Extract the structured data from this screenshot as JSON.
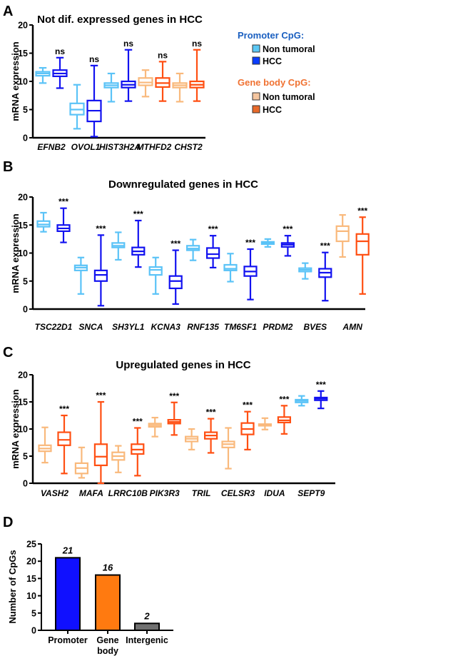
{
  "colors": {
    "promoter_non_tumoral": "#5bc3f7",
    "promoter_hcc": "#1212f0",
    "gene_body_non_tumoral": "#f9b97c",
    "gene_body_hcc": "#ff4f12",
    "promoter_heading": "#1a5fc0",
    "gene_body_heading": "#f07232",
    "bar_promoter": "#1010ff",
    "bar_gene_body": "#ff7a10",
    "bar_intergenic": "#707070"
  },
  "legend": {
    "promoter_heading": "Promoter CpG:",
    "promoter_items": [
      "Non tumoral",
      "HCC"
    ],
    "gene_body_heading": "Gene body CpG:",
    "gene_body_items": [
      "Non tumoral",
      "HCC"
    ]
  },
  "chart_data": [
    {
      "panel": "A",
      "type": "box",
      "title": "Not dif. expressed genes in HCC",
      "ylabel": "mRNA expression",
      "ylim": [
        0,
        20
      ],
      "yticks": [
        0,
        5,
        10,
        15,
        20
      ],
      "genes": [
        {
          "name": "EFNB2",
          "sig": "ns",
          "boxes": [
            {
              "group": "promoter_non_tumoral",
              "stats": [
                9.7,
                11.0,
                11.4,
                11.7,
                12.4
              ]
            },
            {
              "group": "promoter_hcc",
              "stats": [
                8.8,
                10.9,
                11.4,
                12.0,
                14.2
              ]
            }
          ]
        },
        {
          "name": "OVOL1",
          "sig": "ns",
          "boxes": [
            {
              "group": "promoter_non_tumoral",
              "stats": [
                1.6,
                4.1,
                5.0,
                6.1,
                9.4
              ]
            },
            {
              "group": "promoter_hcc",
              "stats": [
                0.2,
                2.9,
                4.8,
                6.6,
                12.8
              ]
            }
          ]
        },
        {
          "name": "HIST3H2A",
          "sig": "ns",
          "boxes": [
            {
              "group": "promoter_non_tumoral",
              "stats": [
                6.4,
                8.9,
                9.3,
                9.7,
                11.4
              ]
            },
            {
              "group": "promoter_hcc",
              "stats": [
                6.5,
                8.9,
                9.4,
                10.0,
                15.6
              ]
            }
          ]
        },
        {
          "name": "MTHFD2",
          "sig": "ns",
          "boxes": [
            {
              "group": "gene_body_non_tumoral",
              "stats": [
                7.3,
                9.3,
                9.8,
                10.6,
                12.0
              ]
            },
            {
              "group": "gene_body_hcc",
              "stats": [
                6.5,
                9.0,
                9.7,
                10.6,
                13.5
              ]
            }
          ]
        },
        {
          "name": "CHST2",
          "sig": "ns",
          "boxes": [
            {
              "group": "gene_body_non_tumoral",
              "stats": [
                6.4,
                8.9,
                9.3,
                9.7,
                11.4
              ]
            },
            {
              "group": "gene_body_hcc",
              "stats": [
                6.5,
                8.9,
                9.4,
                10.0,
                15.6
              ]
            }
          ]
        }
      ]
    },
    {
      "panel": "B",
      "type": "box",
      "title": "Downregulated genes in HCC",
      "ylabel": "mRNA expression",
      "ylim": [
        0,
        20
      ],
      "yticks": [
        0,
        5,
        10,
        15,
        20
      ],
      "genes": [
        {
          "name": "TSC22D1",
          "sig": "***",
          "boxes": [
            {
              "group": "promoter_non_tumoral",
              "stats": [
                13.8,
                14.7,
                15.1,
                15.7,
                17.2
              ]
            },
            {
              "group": "promoter_hcc",
              "stats": [
                11.9,
                13.9,
                14.4,
                15.0,
                18.0
              ]
            }
          ]
        },
        {
          "name": "SNCA",
          "sig": "***",
          "boxes": [
            {
              "group": "promoter_non_tumoral",
              "stats": [
                2.7,
                6.9,
                7.4,
                7.8,
                9.2
              ]
            },
            {
              "group": "promoter_hcc",
              "stats": [
                0.6,
                5.0,
                6.1,
                6.9,
                13.2
              ]
            }
          ]
        },
        {
          "name": "SH3YL1",
          "sig": "***",
          "boxes": [
            {
              "group": "promoter_non_tumoral",
              "stats": [
                8.8,
                11.0,
                11.3,
                11.8,
                13.7
              ]
            },
            {
              "group": "promoter_hcc",
              "stats": [
                7.5,
                9.7,
                10.3,
                11.0,
                15.8
              ]
            }
          ]
        },
        {
          "name": "KCNA3",
          "sig": "***",
          "boxes": [
            {
              "group": "promoter_non_tumoral",
              "stats": [
                2.7,
                6.1,
                7.0,
                7.5,
                9.2
              ]
            },
            {
              "group": "promoter_hcc",
              "stats": [
                0.9,
                3.7,
                5.0,
                5.9,
                10.5
              ]
            }
          ]
        },
        {
          "name": "RNF135",
          "sig": "***",
          "boxes": [
            {
              "group": "promoter_non_tumoral",
              "stats": [
                8.7,
                10.5,
                10.8,
                11.3,
                12.4
              ]
            },
            {
              "group": "promoter_hcc",
              "stats": [
                7.4,
                9.1,
                9.8,
                10.9,
                13.1
              ]
            }
          ]
        },
        {
          "name": "TM6SF1",
          "sig": "***",
          "boxes": [
            {
              "group": "promoter_non_tumoral",
              "stats": [
                4.9,
                6.9,
                7.2,
                7.9,
                9.9
              ]
            },
            {
              "group": "promoter_hcc",
              "stats": [
                1.7,
                5.9,
                6.7,
                7.6,
                10.7
              ]
            }
          ]
        },
        {
          "name": "PRDM2",
          "sig": "***",
          "boxes": [
            {
              "group": "promoter_non_tumoral",
              "stats": [
                11.1,
                11.6,
                11.8,
                12.0,
                12.5
              ]
            },
            {
              "group": "promoter_hcc",
              "stats": [
                9.5,
                11.1,
                11.5,
                11.8,
                13.1
              ]
            }
          ]
        },
        {
          "name": "BVES",
          "sig": "***",
          "boxes": [
            {
              "group": "promoter_non_tumoral",
              "stats": [
                5.4,
                6.7,
                7.0,
                7.3,
                8.2
              ]
            },
            {
              "group": "promoter_hcc",
              "stats": [
                1.5,
                5.7,
                6.5,
                7.2,
                10.1
              ]
            }
          ]
        },
        {
          "name": "AMN",
          "sig": "***",
          "boxes": [
            {
              "group": "gene_body_non_tumoral",
              "stats": [
                9.3,
                12.1,
                13.9,
                14.8,
                16.8
              ]
            },
            {
              "group": "gene_body_hcc",
              "stats": [
                2.7,
                9.7,
                12.1,
                13.4,
                16.4
              ]
            }
          ]
        }
      ]
    },
    {
      "panel": "C",
      "type": "box",
      "title": "Upregulated genes in HCC",
      "ylabel": "mRNA expression",
      "ylim": [
        0,
        20
      ],
      "yticks": [
        0,
        5,
        10,
        15,
        20
      ],
      "genes": [
        {
          "name": "VASH2",
          "sig": "***",
          "boxes": [
            {
              "group": "gene_body_non_tumoral",
              "stats": [
                3.8,
                5.9,
                6.4,
                7.0,
                10.3
              ]
            },
            {
              "group": "gene_body_hcc",
              "stats": [
                1.8,
                7.0,
                8.0,
                9.4,
                12.5
              ]
            }
          ]
        },
        {
          "name": "MAFA",
          "sig": "***",
          "boxes": [
            {
              "group": "gene_body_non_tumoral",
              "stats": [
                1.0,
                1.8,
                2.8,
                3.7,
                6.6
              ]
            },
            {
              "group": "gene_body_hcc",
              "stats": [
                0.0,
                3.3,
                4.9,
                7.2,
                15.0
              ]
            }
          ]
        },
        {
          "name": "LRRC10B",
          "sig": "***",
          "boxes": [
            {
              "group": "gene_body_non_tumoral",
              "stats": [
                2.0,
                4.3,
                5.0,
                5.7,
                6.9
              ]
            },
            {
              "group": "gene_body_hcc",
              "stats": [
                1.4,
                5.4,
                6.2,
                7.2,
                10.2
              ]
            }
          ]
        },
        {
          "name": "PIK3R3",
          "sig": "***",
          "boxes": [
            {
              "group": "gene_body_non_tumoral",
              "stats": [
                8.6,
                10.4,
                10.7,
                11.0,
                12.1
              ]
            },
            {
              "group": "gene_body_hcc",
              "stats": [
                8.9,
                11.0,
                11.3,
                11.7,
                14.9
              ]
            }
          ]
        },
        {
          "name": "TRIL",
          "sig": "***",
          "boxes": [
            {
              "group": "gene_body_non_tumoral",
              "stats": [
                6.2,
                7.7,
                8.2,
                8.6,
                10.0
              ]
            },
            {
              "group": "gene_body_hcc",
              "stats": [
                5.6,
                8.2,
                8.8,
                9.4,
                11.9
              ]
            }
          ]
        },
        {
          "name": "CELSR3",
          "sig": "***",
          "boxes": [
            {
              "group": "gene_body_non_tumoral",
              "stats": [
                2.7,
                6.6,
                7.2,
                7.7,
                10.2
              ]
            },
            {
              "group": "gene_body_hcc",
              "stats": [
                6.2,
                9.0,
                10.0,
                11.1,
                13.2
              ]
            }
          ]
        },
        {
          "name": "IDUA",
          "sig": "***",
          "boxes": [
            {
              "group": "gene_body_non_tumoral",
              "stats": [
                9.9,
                10.6,
                10.7,
                10.9,
                12.0
              ]
            },
            {
              "group": "gene_body_hcc",
              "stats": [
                9.1,
                11.2,
                11.6,
                12.2,
                14.3
              ]
            }
          ]
        },
        {
          "name": "SEPT9",
          "sig": "***",
          "boxes": [
            {
              "group": "promoter_non_tumoral",
              "stats": [
                14.3,
                14.9,
                15.2,
                15.4,
                16.1
              ]
            },
            {
              "group": "promoter_hcc",
              "stats": [
                13.8,
                15.3,
                15.6,
                15.8,
                17.0
              ]
            }
          ]
        }
      ]
    },
    {
      "panel": "D",
      "type": "bar",
      "ylabel": "Number of CpGs",
      "ylim": [
        0,
        25
      ],
      "yticks": [
        0,
        5,
        10,
        15,
        20,
        25
      ],
      "categories": [
        "Promoter",
        "Gene body",
        "Intergenic"
      ],
      "category_lines": [
        [
          "Promoter"
        ],
        [
          "Gene",
          "body"
        ],
        [
          "Intergenic"
        ]
      ],
      "values": [
        21,
        16,
        2
      ],
      "value_labels": [
        "21",
        "16",
        "2"
      ],
      "bar_colors": [
        "bar_promoter",
        "bar_gene_body",
        "bar_intergenic"
      ]
    }
  ]
}
